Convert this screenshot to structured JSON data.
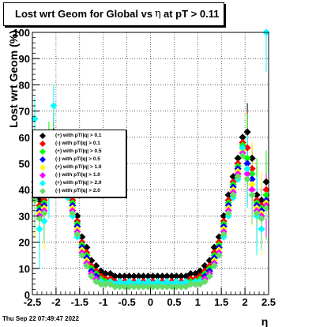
{
  "title": {
    "part1": "Lost wrt Geom for Global vs",
    "symbol": "η",
    "part2": "at pT > 0.11"
  },
  "footer": "Thu Sep 22 07:49:47 2022",
  "colors": {
    "frame": "#000000",
    "grid": "#000000",
    "background": "#ffffff"
  },
  "chart_data": {
    "type": "scatter",
    "title": "Lost wrt Geom for Global vs η at pT > 0.11",
    "xlabel": "η",
    "ylabel": "Lost wrt Geom (%)",
    "xlim": [
      -2.5,
      2.5
    ],
    "ylim": [
      0,
      100
    ],
    "x_ticks": [
      "-2.5",
      "-2",
      "-1.5",
      "-1",
      "-0.5",
      "0",
      "0.5",
      "1",
      "1.5",
      "2",
      "2.5"
    ],
    "y_ticks": [
      "0",
      "10",
      "20",
      "30",
      "40",
      "50",
      "60",
      "70",
      "80",
      "90",
      "100"
    ],
    "grid": true,
    "legend_position": "left, mid-height",
    "eta_bins": [
      -2.45,
      -2.35,
      -2.25,
      -2.15,
      -2.05,
      -1.95,
      -1.85,
      -1.75,
      -1.65,
      -1.55,
      -1.45,
      -1.35,
      -1.25,
      -1.15,
      -1.05,
      -0.95,
      -0.85,
      -0.75,
      -0.65,
      -0.55,
      -0.45,
      -0.35,
      -0.25,
      -0.15,
      -0.05,
      0.05,
      0.15,
      0.25,
      0.35,
      0.45,
      0.55,
      0.65,
      0.75,
      0.85,
      0.95,
      1.05,
      1.15,
      1.25,
      1.35,
      1.45,
      1.55,
      1.65,
      1.75,
      1.85,
      1.95,
      2.05,
      2.15,
      2.25,
      2.35,
      2.45
    ],
    "series": [
      {
        "name": "(+) with pT/|q| > 0.1",
        "color": "#000000",
        "values": [
          43,
          36,
          38,
          52,
          62,
          60,
          52,
          45,
          38,
          30,
          22,
          18,
          13,
          11,
          9,
          8,
          8,
          7,
          7,
          7,
          7,
          7,
          7,
          7,
          7,
          7,
          7,
          7,
          7,
          7,
          7,
          7,
          7,
          8,
          8,
          9,
          11,
          13,
          18,
          22,
          30,
          38,
          45,
          52,
          60,
          62,
          52,
          38,
          36,
          43
        ]
      },
      {
        "name": "(-) with pT/|q| > 0.1",
        "color": "#ff0000",
        "values": [
          41,
          34,
          36,
          50,
          60,
          58,
          50,
          43,
          36,
          28,
          20,
          16,
          11,
          9,
          7,
          6,
          6,
          5,
          5,
          5,
          5,
          5,
          5,
          5,
          5,
          5,
          5,
          5,
          5,
          5,
          5,
          5,
          5,
          6,
          6,
          7,
          9,
          11,
          16,
          20,
          28,
          36,
          43,
          50,
          58,
          56,
          48,
          36,
          34,
          40
        ]
      },
      {
        "name": "(+) with pT/|q| > 0.5",
        "color": "#00ff00",
        "values": [
          40,
          33,
          35,
          49,
          59,
          57,
          49,
          42,
          35,
          27,
          19,
          15,
          10,
          8,
          6,
          5,
          5,
          4,
          4,
          4,
          4,
          4,
          4,
          4,
          4,
          4,
          4,
          4,
          4,
          4,
          4,
          4,
          4,
          5,
          5,
          6,
          8,
          10,
          15,
          19,
          27,
          35,
          42,
          49,
          57,
          52,
          46,
          35,
          33,
          38
        ]
      },
      {
        "name": "(-) with pT/|q| > 0.5",
        "color": "#0000ff",
        "values": [
          39,
          32,
          34,
          48,
          58,
          56,
          48,
          41,
          34,
          26,
          18,
          14,
          9,
          7,
          5,
          4,
          4,
          4,
          4,
          4,
          4,
          4,
          4,
          4,
          4,
          4,
          4,
          4,
          4,
          4,
          4,
          4,
          4,
          4,
          4,
          5,
          7,
          9,
          14,
          18,
          26,
          34,
          41,
          48,
          56,
          50,
          44,
          34,
          32,
          36
        ]
      },
      {
        "name": "(+) with pT/|q| > 1.0",
        "color": "#ffff00",
        "values": [
          38,
          31,
          33,
          47,
          57,
          55,
          47,
          40,
          33,
          25,
          17,
          13,
          8,
          6,
          5,
          4,
          4,
          4,
          4,
          4,
          4,
          4,
          4,
          4,
          4,
          4,
          4,
          4,
          4,
          4,
          4,
          4,
          4,
          4,
          4,
          5,
          6,
          8,
          13,
          17,
          25,
          33,
          40,
          47,
          55,
          48,
          42,
          33,
          31,
          35
        ]
      },
      {
        "name": "(-) with pT/|q| > 1.0",
        "color": "#ff00ff",
        "values": [
          37,
          30,
          32,
          46,
          56,
          54,
          46,
          39,
          32,
          24,
          16,
          12,
          8,
          6,
          5,
          4,
          4,
          4,
          4,
          4,
          4,
          4,
          4,
          4,
          4,
          4,
          4,
          4,
          4,
          4,
          4,
          4,
          4,
          4,
          4,
          5,
          6,
          8,
          12,
          16,
          24,
          32,
          39,
          46,
          54,
          46,
          40,
          32,
          30,
          34
        ]
      },
      {
        "name": "(+) with pT/|q| > 2.0",
        "color": "#00ffff",
        "values": [
          67,
          25,
          28,
          44,
          72,
          60,
          44,
          37,
          30,
          22,
          15,
          11,
          7,
          5,
          5,
          4,
          5,
          4,
          5,
          4,
          5,
          4,
          5,
          4,
          5,
          4,
          5,
          4,
          5,
          4,
          5,
          4,
          5,
          4,
          5,
          5,
          5,
          7,
          11,
          15,
          22,
          30,
          37,
          44,
          56,
          48,
          38,
          30,
          25,
          100
        ]
      },
      {
        "name": "(-) with pT/|q| > 2.0",
        "color": "#66dd66",
        "values": [
          36,
          29,
          31,
          45,
          55,
          53,
          45,
          38,
          31,
          23,
          15,
          11,
          7,
          5,
          4,
          4,
          4,
          3,
          3,
          3,
          3,
          3,
          3,
          3,
          3,
          3,
          3,
          3,
          3,
          3,
          3,
          3,
          3,
          4,
          4,
          4,
          5,
          7,
          11,
          15,
          23,
          31,
          38,
          45,
          53,
          44,
          38,
          31,
          29,
          33
        ]
      }
    ]
  }
}
